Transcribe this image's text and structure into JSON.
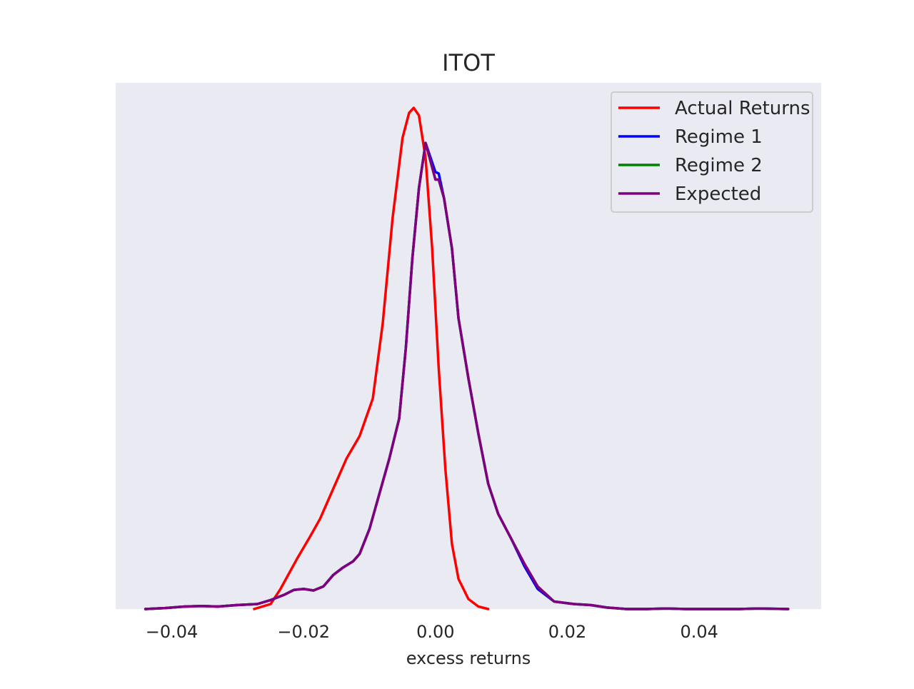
{
  "chart_data": {
    "type": "line",
    "title": "ITOT",
    "xlabel": "excess returns",
    "ylabel": "",
    "xlim": [
      -0.0485,
      0.0585
    ],
    "ylim": [
      0,
      1.05
    ],
    "x_ticks": [
      -0.04,
      -0.02,
      0.0,
      0.02,
      0.04
    ],
    "x_tick_labels": [
      "−0.04",
      "−0.02",
      "0.00",
      "0.02",
      "0.04"
    ],
    "grid": false,
    "y_ticks_visible": false,
    "legend_position": "top-right",
    "background_color": "#eaeaf2",
    "series": [
      {
        "name": "Actual Returns",
        "color": "#ff0000",
        "points": [
          [
            -0.0275,
            0.0
          ],
          [
            -0.025,
            0.01
          ],
          [
            -0.0235,
            0.04
          ],
          [
            -0.021,
            0.1
          ],
          [
            -0.019,
            0.145
          ],
          [
            -0.0175,
            0.18
          ],
          [
            -0.0155,
            0.24
          ],
          [
            -0.0135,
            0.3
          ],
          [
            -0.0115,
            0.345
          ],
          [
            -0.0095,
            0.42
          ],
          [
            -0.008,
            0.57
          ],
          [
            -0.0065,
            0.78
          ],
          [
            -0.005,
            0.94
          ],
          [
            -0.004,
            0.99
          ],
          [
            -0.0033,
            1.0
          ],
          [
            -0.0025,
            0.985
          ],
          [
            -0.0015,
            0.9
          ],
          [
            -0.0005,
            0.72
          ],
          [
            0.0005,
            0.48
          ],
          [
            0.0015,
            0.28
          ],
          [
            0.0025,
            0.13
          ],
          [
            0.0035,
            0.06
          ],
          [
            0.005,
            0.02
          ],
          [
            0.0065,
            0.005
          ],
          [
            0.008,
            0.0
          ]
        ]
      },
      {
        "name": "Regime 1",
        "color": "#0000ff",
        "points": [
          [
            -0.044,
            0.0
          ],
          [
            -0.041,
            0.002
          ],
          [
            -0.038,
            0.005
          ],
          [
            -0.0355,
            0.006
          ],
          [
            -0.033,
            0.005
          ],
          [
            -0.03,
            0.008
          ],
          [
            -0.027,
            0.01
          ],
          [
            -0.025,
            0.018
          ],
          [
            -0.023,
            0.028
          ],
          [
            -0.0215,
            0.038
          ],
          [
            -0.02,
            0.04
          ],
          [
            -0.0185,
            0.037
          ],
          [
            -0.017,
            0.045
          ],
          [
            -0.0155,
            0.068
          ],
          [
            -0.014,
            0.083
          ],
          [
            -0.0125,
            0.095
          ],
          [
            -0.0115,
            0.11
          ],
          [
            -0.01,
            0.16
          ],
          [
            -0.0085,
            0.23
          ],
          [
            -0.007,
            0.3
          ],
          [
            -0.0055,
            0.38
          ],
          [
            -0.0045,
            0.52
          ],
          [
            -0.0035,
            0.7
          ],
          [
            -0.0025,
            0.84
          ],
          [
            -0.0015,
            0.93
          ],
          [
            0.0,
            0.872
          ],
          [
            0.0005,
            0.869
          ],
          [
            0.0013,
            0.82
          ],
          [
            0.0025,
            0.72
          ],
          [
            0.0035,
            0.58
          ],
          [
            0.005,
            0.46
          ],
          [
            0.0065,
            0.35
          ],
          [
            0.008,
            0.25
          ],
          [
            0.0095,
            0.19
          ],
          [
            0.0115,
            0.14
          ],
          [
            0.0135,
            0.085
          ],
          [
            0.0155,
            0.04
          ],
          [
            0.018,
            0.015
          ],
          [
            0.021,
            0.01
          ],
          [
            0.0235,
            0.008
          ],
          [
            0.026,
            0.003
          ],
          [
            0.029,
            0.0
          ],
          [
            0.032,
            0.0
          ],
          [
            0.035,
            0.001
          ],
          [
            0.038,
            0.0
          ],
          [
            0.042,
            0.0
          ],
          [
            0.046,
            0.0
          ],
          [
            0.049,
            0.001
          ],
          [
            0.0535,
            0.0
          ]
        ]
      },
      {
        "name": "Regime 2",
        "color": "#008000",
        "points": [
          [
            -0.044,
            0.0
          ],
          [
            -0.041,
            0.002
          ],
          [
            -0.038,
            0.005
          ],
          [
            -0.0355,
            0.006
          ],
          [
            -0.033,
            0.005
          ],
          [
            -0.03,
            0.008
          ],
          [
            -0.027,
            0.01
          ],
          [
            -0.025,
            0.018
          ],
          [
            -0.023,
            0.028
          ],
          [
            -0.0215,
            0.038
          ],
          [
            -0.02,
            0.04
          ],
          [
            -0.0185,
            0.037
          ],
          [
            -0.017,
            0.045
          ],
          [
            -0.0155,
            0.068
          ],
          [
            -0.014,
            0.083
          ],
          [
            -0.0125,
            0.095
          ],
          [
            -0.0115,
            0.11
          ],
          [
            -0.01,
            0.16
          ],
          [
            -0.0085,
            0.23
          ],
          [
            -0.007,
            0.3
          ],
          [
            -0.0055,
            0.38
          ],
          [
            -0.0045,
            0.52
          ],
          [
            -0.0035,
            0.7
          ],
          [
            -0.0025,
            0.84
          ],
          [
            -0.0015,
            0.93
          ],
          [
            0.0,
            0.857
          ],
          [
            0.0005,
            0.857
          ],
          [
            0.0013,
            0.82
          ],
          [
            0.0025,
            0.72
          ],
          [
            0.0035,
            0.58
          ],
          [
            0.005,
            0.46
          ],
          [
            0.0065,
            0.35
          ],
          [
            0.008,
            0.25
          ],
          [
            0.0095,
            0.19
          ],
          [
            0.0115,
            0.14
          ],
          [
            0.0135,
            0.09
          ],
          [
            0.0155,
            0.045
          ],
          [
            0.018,
            0.015
          ],
          [
            0.021,
            0.01
          ],
          [
            0.0235,
            0.008
          ],
          [
            0.026,
            0.003
          ],
          [
            0.029,
            0.0
          ],
          [
            0.032,
            0.0
          ],
          [
            0.035,
            0.001
          ],
          [
            0.038,
            0.0
          ],
          [
            0.042,
            0.0
          ],
          [
            0.046,
            0.0
          ],
          [
            0.049,
            0.001
          ],
          [
            0.0535,
            0.0
          ]
        ]
      },
      {
        "name": "Expected",
        "color": "#800080",
        "points": [
          [
            -0.044,
            0.0
          ],
          [
            -0.041,
            0.002
          ],
          [
            -0.038,
            0.005
          ],
          [
            -0.0355,
            0.006
          ],
          [
            -0.033,
            0.005
          ],
          [
            -0.03,
            0.008
          ],
          [
            -0.027,
            0.01
          ],
          [
            -0.025,
            0.018
          ],
          [
            -0.023,
            0.028
          ],
          [
            -0.0215,
            0.038
          ],
          [
            -0.02,
            0.04
          ],
          [
            -0.0185,
            0.037
          ],
          [
            -0.017,
            0.045
          ],
          [
            -0.0155,
            0.068
          ],
          [
            -0.014,
            0.083
          ],
          [
            -0.0125,
            0.095
          ],
          [
            -0.0115,
            0.11
          ],
          [
            -0.01,
            0.16
          ],
          [
            -0.0085,
            0.23
          ],
          [
            -0.007,
            0.3
          ],
          [
            -0.0055,
            0.38
          ],
          [
            -0.0045,
            0.52
          ],
          [
            -0.0035,
            0.7
          ],
          [
            -0.0025,
            0.84
          ],
          [
            -0.0015,
            0.93
          ],
          [
            0.0,
            0.857
          ],
          [
            0.0005,
            0.857
          ],
          [
            0.0013,
            0.82
          ],
          [
            0.0025,
            0.72
          ],
          [
            0.0035,
            0.58
          ],
          [
            0.005,
            0.46
          ],
          [
            0.0065,
            0.35
          ],
          [
            0.008,
            0.25
          ],
          [
            0.0095,
            0.19
          ],
          [
            0.0115,
            0.14
          ],
          [
            0.0135,
            0.09
          ],
          [
            0.0155,
            0.045
          ],
          [
            0.018,
            0.015
          ],
          [
            0.021,
            0.01
          ],
          [
            0.0235,
            0.008
          ],
          [
            0.026,
            0.003
          ],
          [
            0.029,
            0.0
          ],
          [
            0.032,
            0.0
          ],
          [
            0.035,
            0.001
          ],
          [
            0.038,
            0.0
          ],
          [
            0.042,
            0.0
          ],
          [
            0.046,
            0.0
          ],
          [
            0.049,
            0.001
          ],
          [
            0.0535,
            0.0
          ]
        ]
      }
    ]
  }
}
